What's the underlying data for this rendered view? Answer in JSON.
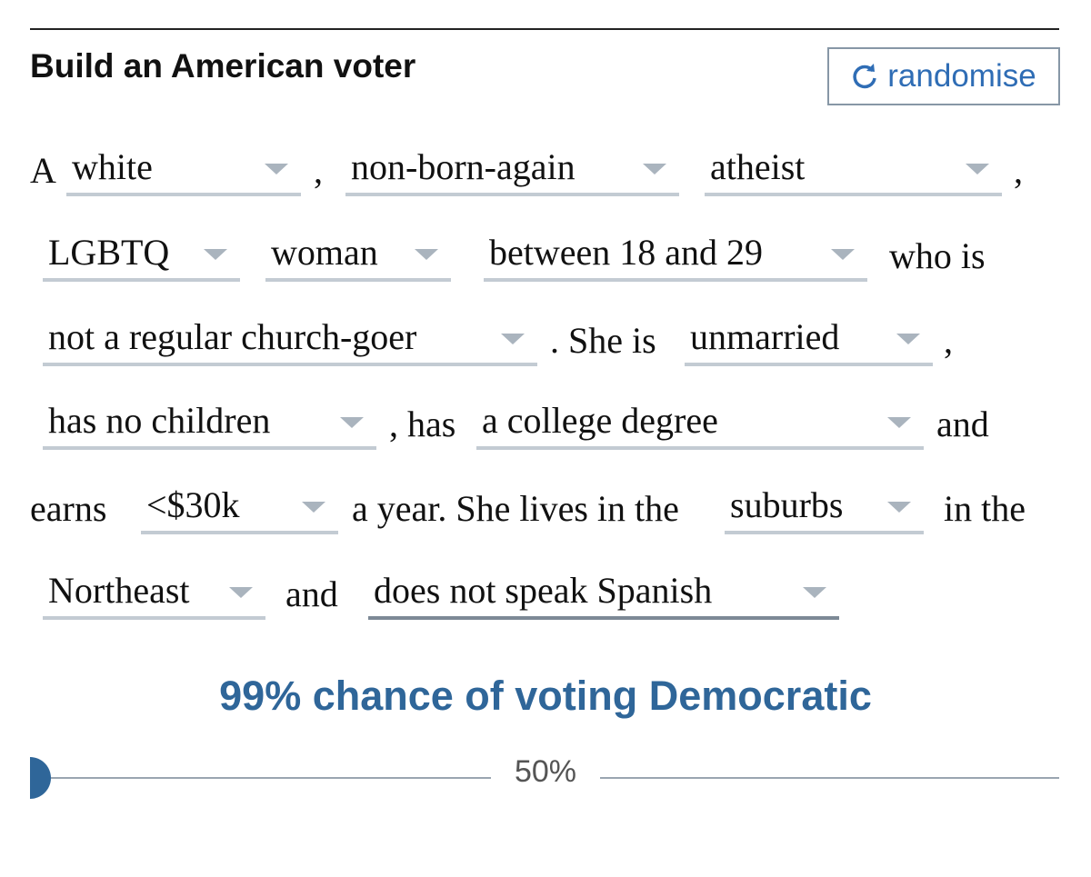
{
  "header": {
    "title": "Build an American voter",
    "button": "randomise"
  },
  "sentence": [
    [
      {
        "text": "A"
      },
      {
        "option": "white"
      },
      {
        "text": ","
      },
      {
        "option": "non-born-again"
      },
      {
        "option": "atheist"
      },
      {
        "text": ","
      }
    ],
    [
      {
        "option": "LGBTQ"
      },
      {
        "option": "woman"
      },
      {
        "option": "between 18 and 29"
      },
      {
        "text": "who is"
      }
    ],
    [
      {
        "option": "not a regular church-goer"
      },
      {
        "text": ". She is"
      },
      {
        "option": "unmarried"
      },
      {
        "text": ","
      }
    ],
    [
      {
        "option": "has no children"
      },
      {
        "text": ", has"
      },
      {
        "option": "a college degree"
      },
      {
        "text": "and"
      }
    ],
    [
      {
        "text": "earns"
      },
      {
        "option": "<$30k"
      },
      {
        "text": "a year. She lives in the"
      },
      {
        "option": "suburbs"
      },
      {
        "text": "in the"
      }
    ],
    [
      {
        "option": "Northeast"
      },
      {
        "text": "and"
      },
      {
        "option": "does not speak Spanish"
      }
    ]
  ],
  "result": "99% chance of voting Democratic",
  "scale_label": "50%"
}
